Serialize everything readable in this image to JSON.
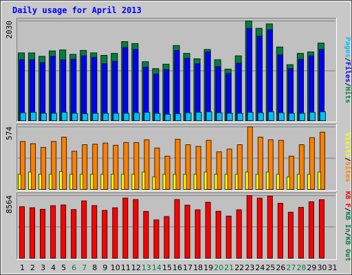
{
  "chart_data": {
    "type": "bar",
    "title": "Daily usage for April 2013",
    "days": [
      "1",
      "2",
      "3",
      "4",
      "5",
      "6",
      "7",
      "8",
      "9",
      "10",
      "11",
      "12",
      "13",
      "14",
      "15",
      "16",
      "17",
      "18",
      "19",
      "20",
      "21",
      "22",
      "23",
      "24",
      "25",
      "26",
      "27",
      "28",
      "29",
      "30",
      "31"
    ],
    "weekend_days": [
      "6",
      "7",
      "13",
      "14",
      "20",
      "21",
      "27",
      "28"
    ],
    "panels": [
      {
        "name": "hits-files-pages",
        "ymax_label": "2030",
        "ymax": 2030,
        "legend": [
          {
            "label": "Pages",
            "color": "#00c0ff"
          },
          {
            "label": "/",
            "color": "#000000"
          },
          {
            "label": "Files",
            "color": "#0000ff"
          },
          {
            "label": "/",
            "color": "#000000"
          },
          {
            "label": "Hits",
            "color": "#008040"
          }
        ],
        "series": [
          {
            "name": "Hits",
            "color": "#008040",
            "values": [
              1380,
              1380,
              1310,
              1420,
              1440,
              1350,
              1430,
              1380,
              1330,
              1370,
              1610,
              1570,
              1200,
              1060,
              1150,
              1530,
              1370,
              1260,
              1450,
              1240,
              1050,
              1320,
              2030,
              1880,
              1970,
              1500,
              1140,
              1370,
              1400,
              1580,
              null
            ]
          },
          {
            "name": "Files",
            "color": "#0000ff",
            "values": [
              1240,
              1240,
              1180,
              1310,
              1240,
              1250,
              1320,
              1290,
              1160,
              1210,
              1490,
              1450,
              1090,
              950,
              1040,
              1430,
              1270,
              1160,
              1400,
              1100,
              960,
              1170,
              1880,
              1720,
              1850,
              1340,
              1060,
              1250,
              1320,
              1450,
              null
            ]
          },
          {
            "name": "Pages",
            "color": "#00c0ff",
            "values": [
              160,
              170,
              150,
              150,
              170,
              150,
              140,
              150,
              150,
              150,
              150,
              160,
              170,
              150,
              130,
              140,
              160,
              170,
              180,
              160,
              150,
              150,
              170,
              160,
              180,
              160,
              150,
              150,
              170,
              180,
              null
            ]
          }
        ]
      },
      {
        "name": "visits-sites",
        "ymax_label": "574",
        "ymax": 574,
        "legend": [
          {
            "label": "Visits",
            "color": "#ffff00"
          },
          {
            "label": "/",
            "color": "#000000"
          },
          {
            "label": "Sites",
            "color": "#ff8000"
          }
        ],
        "series": [
          {
            "name": "Sites",
            "color": "#ff8000",
            "values": [
              440,
              420,
              385,
              440,
              480,
              350,
              410,
              415,
              425,
              405,
              430,
              430,
              455,
              380,
              305,
              460,
              410,
              395,
              450,
              345,
              370,
              410,
              574,
              480,
              455,
              450,
              305,
              410,
              475,
              525,
              null
            ]
          },
          {
            "name": "Visits",
            "color": "#ffff00",
            "values": [
              140,
              160,
              140,
              140,
              165,
              140,
              140,
              140,
              140,
              140,
              140,
              140,
              160,
              115,
              140,
              140,
              140,
              140,
              160,
              140,
              140,
              140,
              160,
              140,
              160,
              140,
              115,
              140,
              140,
              160,
              null
            ]
          }
        ]
      },
      {
        "name": "kbytes",
        "ymax_label": "8564",
        "ymax": 8564,
        "legend": [
          {
            "label": "KB F",
            "color": "#ff0000"
          },
          {
            "label": "/",
            "color": "#000000"
          },
          {
            "label": "KB In",
            "color": "#008040"
          },
          {
            "label": "/",
            "color": "#000000"
          },
          {
            "label": "KB Out",
            "color": "#008040"
          }
        ],
        "series": [
          {
            "name": "KBytes",
            "color": "#ff0000",
            "values": [
              7050,
              6900,
              6690,
              7180,
              7280,
              6650,
              7840,
              7200,
              6540,
              6900,
              8230,
              8020,
              6400,
              5240,
              5700,
              8020,
              7260,
              6620,
              7660,
              6420,
              5760,
              6620,
              8564,
              8220,
              8480,
              7520,
              6290,
              6950,
              7720,
              8000,
              null
            ]
          }
        ]
      }
    ]
  }
}
